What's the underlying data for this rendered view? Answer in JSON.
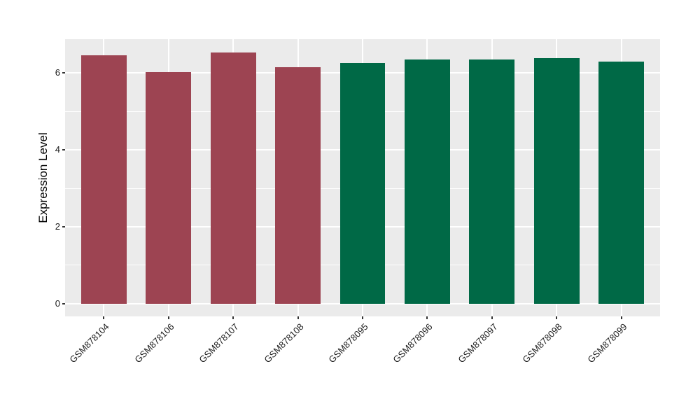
{
  "chart_data": {
    "type": "bar",
    "title": "",
    "xlabel": "",
    "ylabel": "Expression Level",
    "categories": [
      "GSM878104",
      "GSM878106",
      "GSM878107",
      "GSM878108",
      "GSM878095",
      "GSM878096",
      "GSM878097",
      "GSM878098",
      "GSM878099"
    ],
    "values": [
      6.46,
      6.03,
      6.54,
      6.16,
      6.27,
      6.35,
      6.36,
      6.39,
      6.29
    ],
    "bar_colors": [
      "#9D4452",
      "#9D4452",
      "#9D4452",
      "#9D4452",
      "#006946",
      "#006946",
      "#006946",
      "#006946",
      "#006946"
    ],
    "group_colors": {
      "left_group": "#9D4452",
      "right_group": "#006946"
    },
    "ylim": [
      -0.33,
      6.88
    ],
    "yticks_major": [
      0,
      2,
      4,
      6
    ],
    "yticks_minor": [
      1,
      3,
      5
    ],
    "x_tick_label_angle": 45,
    "bar_width_fraction": 0.7,
    "legend": "none",
    "grid": true,
    "panel_background": "#EBEBEB",
    "gridline_color": "#FFFFFF",
    "axis_text_color": "#1a1a1a"
  }
}
